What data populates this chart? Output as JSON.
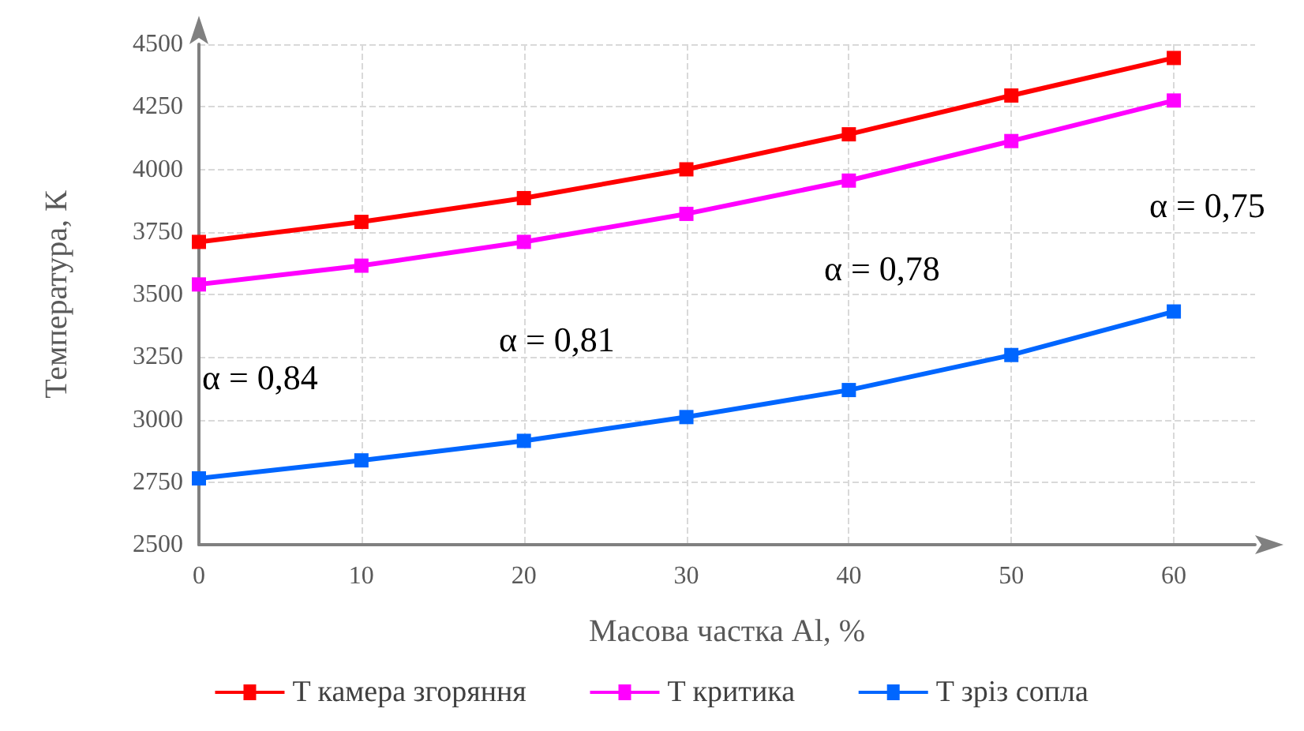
{
  "chart_data": {
    "type": "line",
    "xlabel": "Масова частка Al, %",
    "ylabel": "Температура, К",
    "x": [
      0,
      10,
      20,
      30,
      40,
      50,
      60
    ],
    "series": [
      {
        "name": "T камера згоряння",
        "color": "#ff0000",
        "values": [
          3710,
          3790,
          3885,
          4000,
          4140,
          4295,
          4445
        ]
      },
      {
        "name": "T критика",
        "color": "#ff00ff",
        "values": [
          3540,
          3615,
          3710,
          3822,
          3955,
          4113,
          4275
        ]
      },
      {
        "name": "T зріз сопла",
        "color": "#0066ff",
        "values": [
          2765,
          2837,
          2915,
          3010,
          3118,
          3258,
          3432
        ]
      }
    ],
    "xlim": [
      0,
      65
    ],
    "xticks": [
      0,
      10,
      20,
      30,
      40,
      50,
      60
    ],
    "ylim": [
      2500,
      4500
    ],
    "yticks": [
      2500,
      2750,
      3000,
      3250,
      3500,
      3750,
      4000,
      4250,
      4500
    ],
    "annotations": [
      "α = 0,84",
      "α = 0,81",
      "α = 0,78",
      "α = 0,75"
    ],
    "grid": true,
    "legend": "bottom",
    "marker": "square",
    "line_style": "solid"
  }
}
